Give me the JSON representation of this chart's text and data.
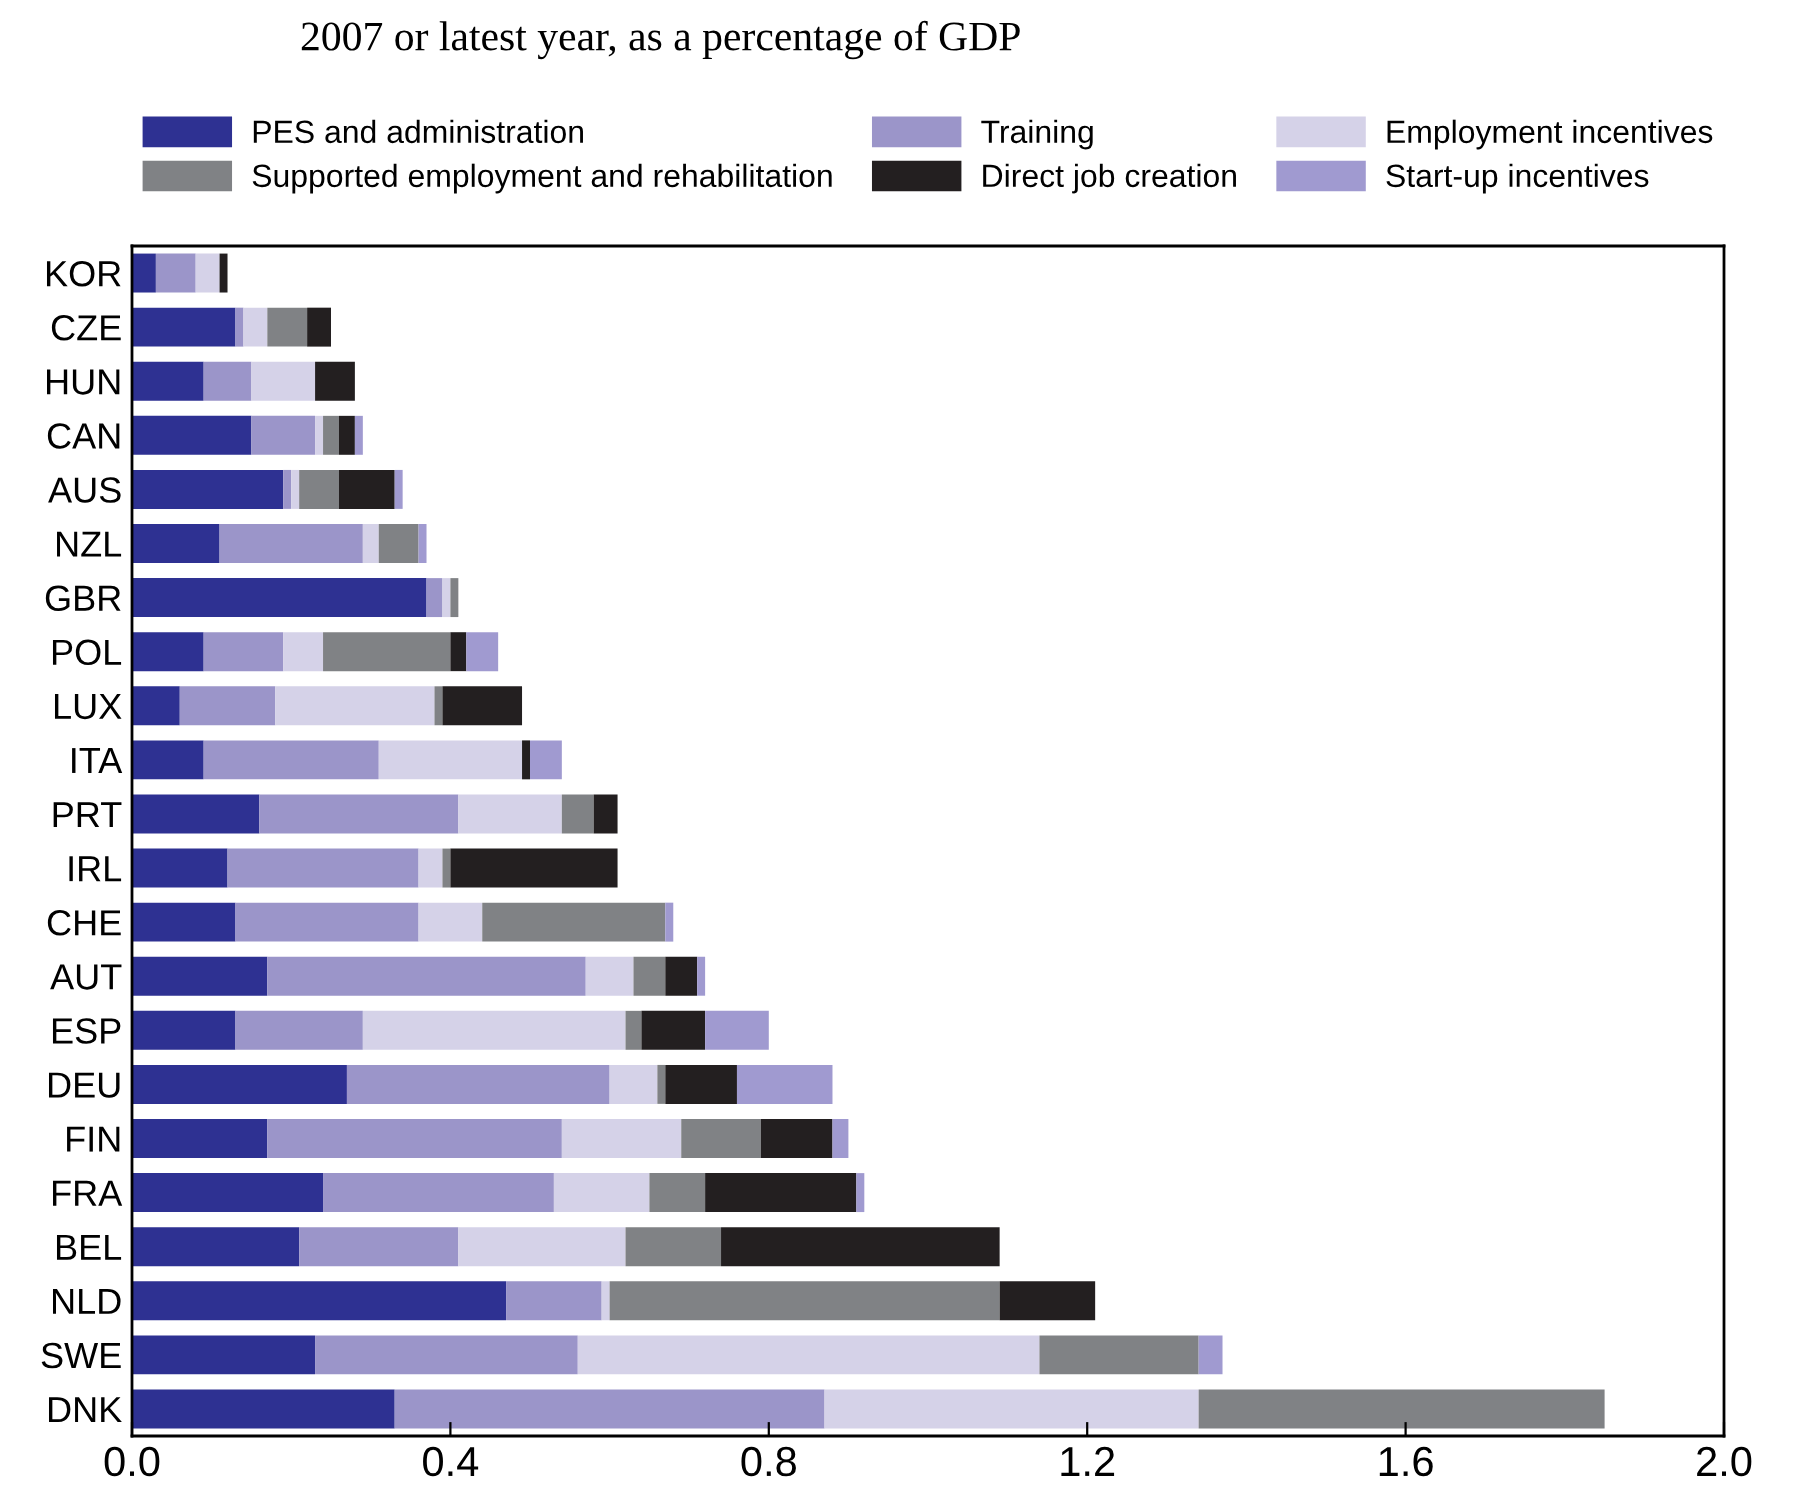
{
  "chart_data": {
    "type": "bar",
    "orientation": "horizontal",
    "stacked": true,
    "title": "2007 or latest year, as a percentage of GDP",
    "categories": [
      "KOR",
      "CZE",
      "HUN",
      "CAN",
      "AUS",
      "NZL",
      "GBR",
      "POL",
      "LUX",
      "ITA",
      "PRT",
      "IRL",
      "CHE",
      "AUT",
      "ESP",
      "DEU",
      "FIN",
      "FRA",
      "BEL",
      "NLD",
      "SWE",
      "DNK"
    ],
    "series": [
      {
        "name": "PES and administration",
        "color": "#2e3192",
        "values": [
          0.03,
          0.13,
          0.09,
          0.15,
          0.19,
          0.11,
          0.37,
          0.09,
          0.06,
          0.09,
          0.16,
          0.12,
          0.13,
          0.17,
          0.13,
          0.27,
          0.17,
          0.24,
          0.21,
          0.47,
          0.23,
          0.33
        ]
      },
      {
        "name": "Training",
        "color": "#9b95c9",
        "values": [
          0.05,
          0.01,
          0.06,
          0.08,
          0.01,
          0.18,
          0.02,
          0.1,
          0.12,
          0.22,
          0.25,
          0.24,
          0.23,
          0.4,
          0.16,
          0.33,
          0.37,
          0.29,
          0.2,
          0.12,
          0.33,
          0.54
        ]
      },
      {
        "name": "Employment incentives",
        "color": "#d5d2e8",
        "values": [
          0.03,
          0.03,
          0.08,
          0.01,
          0.01,
          0.02,
          0.01,
          0.05,
          0.2,
          0.18,
          0.13,
          0.03,
          0.08,
          0.06,
          0.33,
          0.06,
          0.15,
          0.12,
          0.21,
          0.01,
          0.58,
          0.47
        ]
      },
      {
        "name": "Supported employment and rehabilitation",
        "color": "#808285",
        "values": [
          0,
          0.05,
          0,
          0.02,
          0.05,
          0.05,
          0.01,
          0.16,
          0.01,
          0,
          0.04,
          0.01,
          0.23,
          0.04,
          0.02,
          0.01,
          0.1,
          0.07,
          0.12,
          0.49,
          0.2,
          0.51
        ]
      },
      {
        "name": "Direct job creation",
        "color": "#231f20",
        "values": [
          0.01,
          0.03,
          0.05,
          0.02,
          0.07,
          0,
          0,
          0.02,
          0.1,
          0.01,
          0.03,
          0.21,
          0,
          0.04,
          0.08,
          0.09,
          0.09,
          0.19,
          0.35,
          0.12,
          0,
          0
        ]
      },
      {
        "name": "Start-up incentives",
        "color": "#a09ad0",
        "values": [
          0,
          0,
          0,
          0.01,
          0.01,
          0.01,
          0,
          0.04,
          0,
          0.04,
          0,
          0,
          0.01,
          0.01,
          0.08,
          0.12,
          0.02,
          0.01,
          0,
          0,
          0.03,
          0
        ]
      }
    ],
    "xlim": [
      0,
      2
    ],
    "xticks": [
      {
        "value": 0,
        "label": "0.0"
      },
      0.4,
      0.8,
      1.2,
      1.6,
      {
        "value": 2,
        "label": "2.0"
      }
    ],
    "legend": "top",
    "grid": false
  }
}
